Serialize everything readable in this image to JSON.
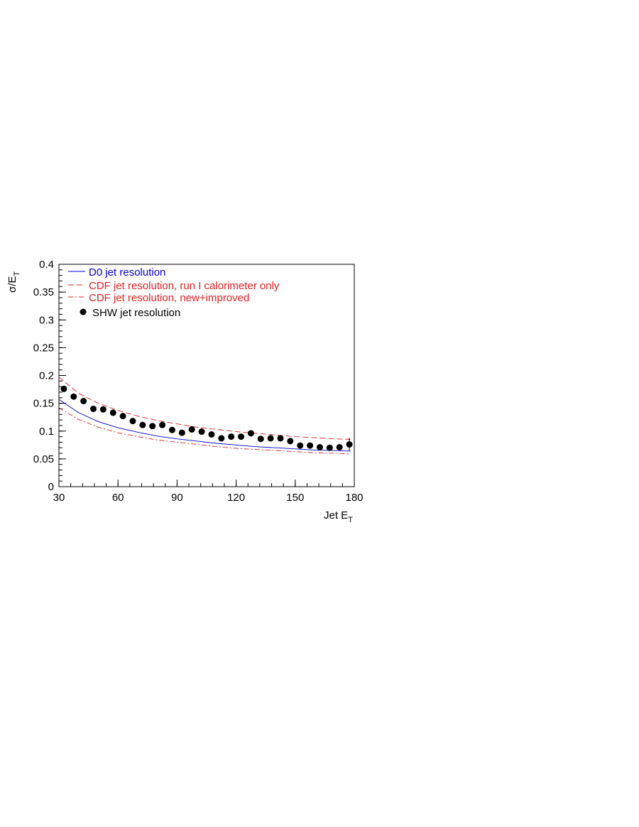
{
  "chart_data": {
    "type": "line",
    "xlabel": "Jet E",
    "xlabel_sub": "T",
    "ylabel": "σ/E",
    "ylabel_sub": "T",
    "xlim": [
      30,
      180
    ],
    "ylim": [
      0,
      0.4
    ],
    "x_ticks": [
      30,
      60,
      90,
      120,
      150,
      180
    ],
    "x_tick_labels": [
      "30",
      "60",
      "90",
      "120",
      "150",
      "180"
    ],
    "y_ticks": [
      0,
      0.05,
      0.1,
      0.15,
      0.2,
      0.25,
      0.3,
      0.35,
      0.4
    ],
    "y_tick_labels": [
      "0",
      "0.05",
      "0.1",
      "0.15",
      "0.2",
      "0.25",
      "0.3",
      "0.35",
      "0.4"
    ],
    "grid": false,
    "legend_position": "top-left",
    "series": [
      {
        "name": "D0 jet resolution",
        "style": "solid",
        "color": "#0000cc",
        "x": [
          30,
          40,
          50,
          60,
          70,
          80,
          90,
          100,
          110,
          120,
          130,
          140,
          150,
          160,
          170,
          178
        ],
        "y": [
          0.157,
          0.133,
          0.117,
          0.106,
          0.098,
          0.091,
          0.086,
          0.082,
          0.078,
          0.075,
          0.072,
          0.07,
          0.068,
          0.066,
          0.065,
          0.064
        ]
      },
      {
        "name": "CDF jet resolution, run I calorimeter only",
        "style": "dashed",
        "color": "#e02020",
        "x": [
          30,
          40,
          50,
          60,
          70,
          80,
          90,
          100,
          110,
          120,
          130,
          140,
          150,
          160,
          170,
          178
        ],
        "y": [
          0.197,
          0.168,
          0.15,
          0.137,
          0.127,
          0.119,
          0.113,
          0.107,
          0.103,
          0.099,
          0.096,
          0.093,
          0.09,
          0.088,
          0.086,
          0.085
        ]
      },
      {
        "name": "CDF jet resolution, new+improved",
        "style": "dashdot",
        "color": "#e02020",
        "x": [
          30,
          40,
          50,
          60,
          70,
          80,
          90,
          100,
          110,
          120,
          130,
          140,
          150,
          160,
          170,
          178
        ],
        "y": [
          0.142,
          0.121,
          0.107,
          0.097,
          0.09,
          0.084,
          0.08,
          0.076,
          0.072,
          0.069,
          0.067,
          0.065,
          0.063,
          0.061,
          0.06,
          0.059
        ]
      },
      {
        "name": "SHW jet resolution",
        "style": "markers",
        "color": "#000000",
        "x": [
          32.5,
          37.5,
          42.5,
          47.5,
          52.5,
          57.5,
          62.5,
          67.5,
          72.5,
          77.5,
          82.5,
          87.5,
          92.5,
          97.5,
          102.5,
          107.5,
          112.5,
          117.5,
          122.5,
          127.5,
          132.5,
          137.5,
          142.5,
          147.5,
          152.5,
          157.5,
          162.5,
          167.5,
          172.5,
          177.5
        ],
        "y": [
          0.176,
          0.162,
          0.154,
          0.14,
          0.139,
          0.133,
          0.127,
          0.118,
          0.111,
          0.109,
          0.111,
          0.102,
          0.097,
          0.103,
          0.099,
          0.094,
          0.087,
          0.09,
          0.09,
          0.096,
          0.086,
          0.087,
          0.087,
          0.082,
          0.074,
          0.074,
          0.071,
          0.07,
          0.071,
          0.076
        ]
      }
    ]
  }
}
